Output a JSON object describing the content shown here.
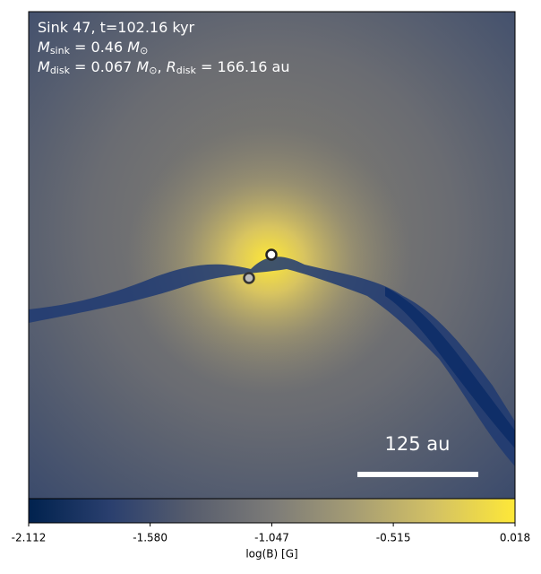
{
  "chart_data": {
    "type": "heatmap",
    "annotations": [
      [
        "Sink 47, t=102.16 kyr"
      ],
      [
        "M",
        "sink",
        " = 0.46 ",
        "M",
        "⊙"
      ],
      [
        "M",
        "disk",
        " = 0.067 ",
        "M",
        "⊙",
        ", ",
        "R",
        "disk",
        " = 166.16 au"
      ]
    ],
    "scale_bar_label": "125 au",
    "colorbar": {
      "label": "log(B) [G]",
      "clim": [
        -2.112,
        0.018
      ],
      "ticks": [
        -2.112,
        {
          "value": -1.58,
          "label": "-1.580"
        },
        -1.047,
        -0.515,
        0.018
      ],
      "colormap": [
        "#00224e",
        "#2a3f6e",
        "#575d6d",
        "#7c7b78",
        "#a59c74",
        "#d3c164",
        "#fee838"
      ]
    }
  }
}
